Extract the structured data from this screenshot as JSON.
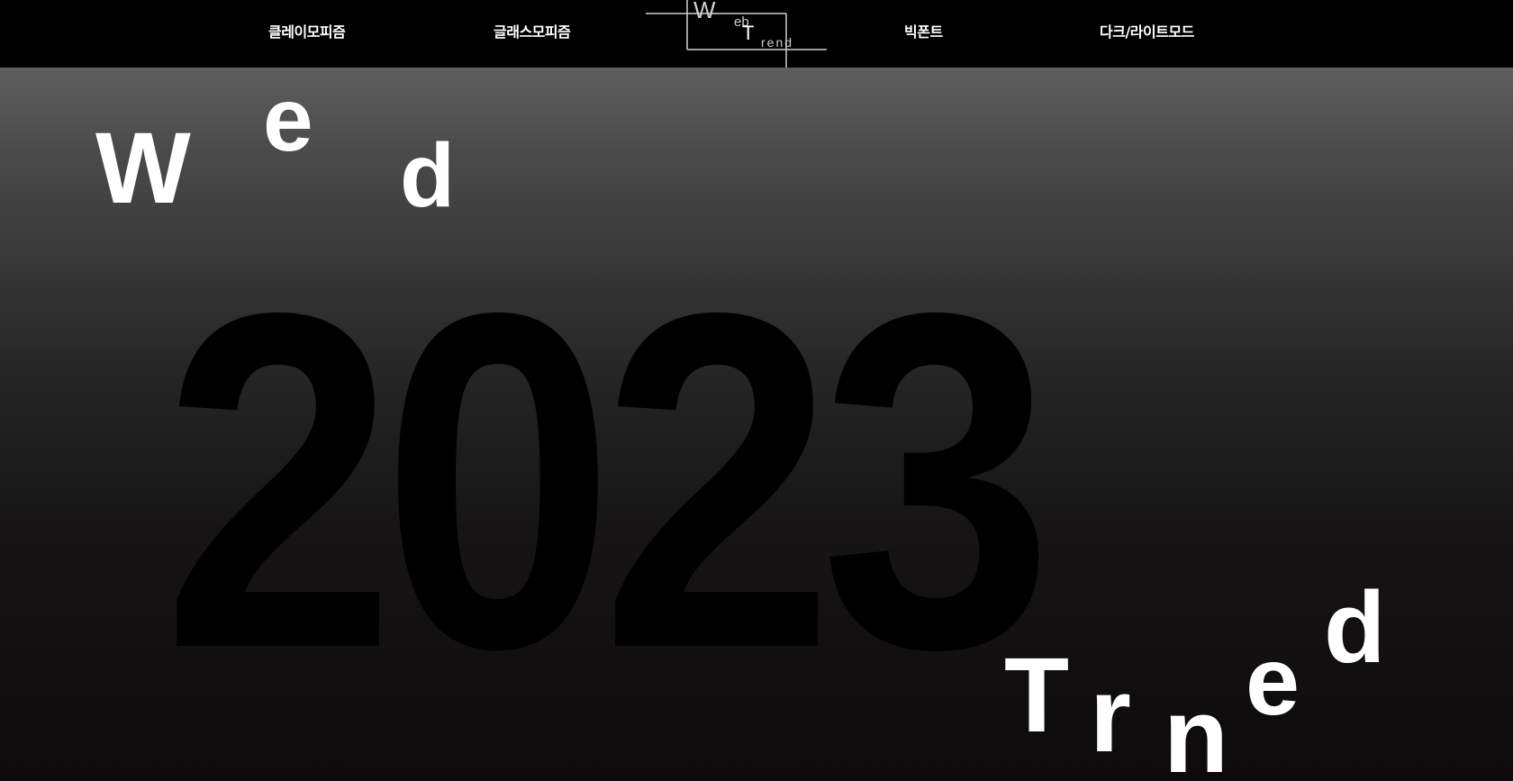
{
  "nav": {
    "items": [
      "클레이모피즘",
      "글래스모피즘",
      "빅폰트",
      "다크/라이트모드"
    ],
    "logo": {
      "w": "W",
      "eb": "eb",
      "t": "T",
      "rend": "rend"
    }
  },
  "hero": {
    "year": "2023",
    "top_letters": [
      "W",
      "e",
      "d"
    ],
    "bottom_letters": [
      "T",
      "r",
      "n",
      "e",
      "d"
    ]
  },
  "colors": {
    "background": "#000000",
    "text": "#ffffff",
    "gradient_top": "#5e5e5e",
    "gradient_bottom": "#0c0a0a"
  }
}
